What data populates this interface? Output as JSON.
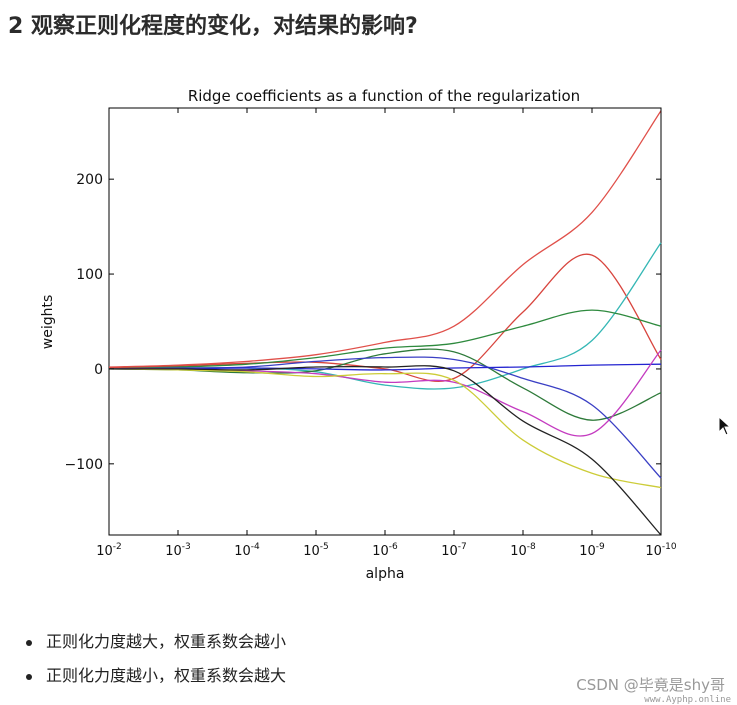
{
  "heading": "2 观察正则化程度的变化，对结果的影响?",
  "bullets": [
    "正则化力度越大，权重系数会越小",
    "正则化力度越小，权重系数会越大"
  ],
  "watermark": "CSDN @毕竟是shy哥",
  "site_watermark": "www.Ayphp.online",
  "chart_data": {
    "type": "line",
    "title": "Ridge coefficients as a function of the regularization",
    "xlabel": "alpha",
    "ylabel": "weights",
    "x_scale": "log",
    "x_reversed": true,
    "xlim": [
      0.01,
      1e-10
    ],
    "ylim": [
      -175,
      275
    ],
    "x_ticks": [
      {
        "value": -2,
        "base": "10",
        "exp": "-2"
      },
      {
        "value": -3,
        "base": "10",
        "exp": "-3"
      },
      {
        "value": -4,
        "base": "10",
        "exp": "-4"
      },
      {
        "value": -5,
        "base": "10",
        "exp": "-5"
      },
      {
        "value": -6,
        "base": "10",
        "exp": "-6"
      },
      {
        "value": -7,
        "base": "10",
        "exp": "-7"
      },
      {
        "value": -8,
        "base": "10",
        "exp": "-8"
      },
      {
        "value": -9,
        "base": "10",
        "exp": "-9"
      },
      {
        "value": -10,
        "base": "10",
        "exp": "-10"
      }
    ],
    "y_ticks": [
      {
        "value": 200,
        "label": "200"
      },
      {
        "value": 100,
        "label": "100"
      },
      {
        "value": 0,
        "label": "0"
      },
      {
        "value": -100,
        "label": "−100"
      }
    ],
    "grid": false,
    "legend": "none",
    "x_log10": [
      -2,
      -3,
      -4,
      -5,
      -6,
      -7,
      -8,
      -9,
      -10
    ],
    "series": [
      {
        "color": "#e0504a",
        "values": [
          2,
          4,
          8,
          15,
          28,
          45,
          110,
          165,
          272
        ]
      },
      {
        "color": "#d8453e",
        "values": [
          1,
          3,
          6,
          7,
          0,
          -10,
          60,
          120,
          10
        ]
      },
      {
        "color": "#35b7b5",
        "values": [
          0,
          1,
          1,
          -3,
          -17,
          -20,
          0,
          30,
          133
        ]
      },
      {
        "color": "#2e8a3e",
        "values": [
          0,
          2,
          5,
          12,
          22,
          27,
          45,
          62,
          45
        ]
      },
      {
        "color": "#2e7a3a",
        "values": [
          0,
          -1,
          -4,
          -2,
          16,
          18,
          -20,
          -54,
          -25
        ]
      },
      {
        "color": "#3a3fc4",
        "values": [
          0,
          1,
          2,
          8,
          12,
          10,
          -10,
          -38,
          -115
        ]
      },
      {
        "color": "#2424d0",
        "values": [
          0,
          0,
          1,
          0,
          -1,
          1,
          2,
          4,
          5
        ]
      },
      {
        "color": "#c43bc0",
        "values": [
          0,
          0,
          -2,
          -5,
          -14,
          -14,
          -45,
          -68,
          20
        ]
      },
      {
        "color": "#cccc38",
        "values": [
          0,
          -1,
          -3,
          -8,
          -5,
          -12,
          -75,
          -110,
          -125
        ]
      },
      {
        "color": "#222222",
        "values": [
          0,
          0,
          -1,
          2,
          2,
          -2,
          -55,
          -95,
          -175
        ]
      }
    ]
  }
}
